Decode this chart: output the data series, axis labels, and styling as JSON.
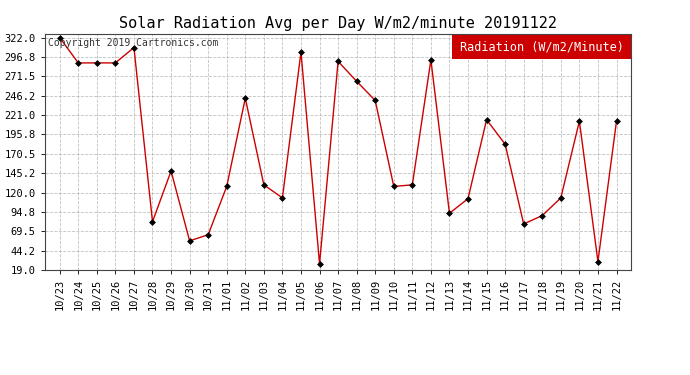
{
  "title": "Solar Radiation Avg per Day W/m2/minute 20191122",
  "copyright": "Copyright 2019 Cartronics.com",
  "legend_label": "Radiation (W/m2/Minute)",
  "dates": [
    "10/23",
    "10/24",
    "10/25",
    "10/26",
    "10/27",
    "10/28",
    "10/29",
    "10/30",
    "10/31",
    "11/01",
    "11/02",
    "11/03",
    "11/04",
    "11/05",
    "11/06",
    "11/07",
    "11/08",
    "11/09",
    "11/10",
    "11/11",
    "11/12",
    "11/13",
    "11/14",
    "11/15",
    "11/16",
    "11/17",
    "11/18",
    "11/19",
    "11/20",
    "11/21",
    "11/22"
  ],
  "values": [
    322.0,
    289.0,
    289.0,
    289.0,
    309.0,
    82.0,
    148.0,
    57.0,
    65.0,
    128.0,
    243.0,
    130.0,
    113.0,
    303.0,
    27.0,
    291.0,
    265.0,
    240.0,
    128.0,
    130.0,
    293.0,
    93.0,
    112.0,
    215.0,
    183.0,
    79.0,
    90.0,
    113.0,
    213.0,
    30.0,
    213.0
  ],
  "y_ticks": [
    19.0,
    44.2,
    69.5,
    94.8,
    120.0,
    145.2,
    170.5,
    195.8,
    221.0,
    246.2,
    271.5,
    296.8,
    322.0
  ],
  "ylim": [
    19.0,
    327.0
  ],
  "line_color": "#cc0000",
  "marker_color": "#000000",
  "bg_color": "#ffffff",
  "grid_color": "#999999",
  "legend_bg": "#cc0000",
  "legend_text_color": "#ffffff",
  "title_fontsize": 11,
  "copyright_fontsize": 7,
  "tick_fontsize": 7.5,
  "legend_fontsize": 8.5
}
